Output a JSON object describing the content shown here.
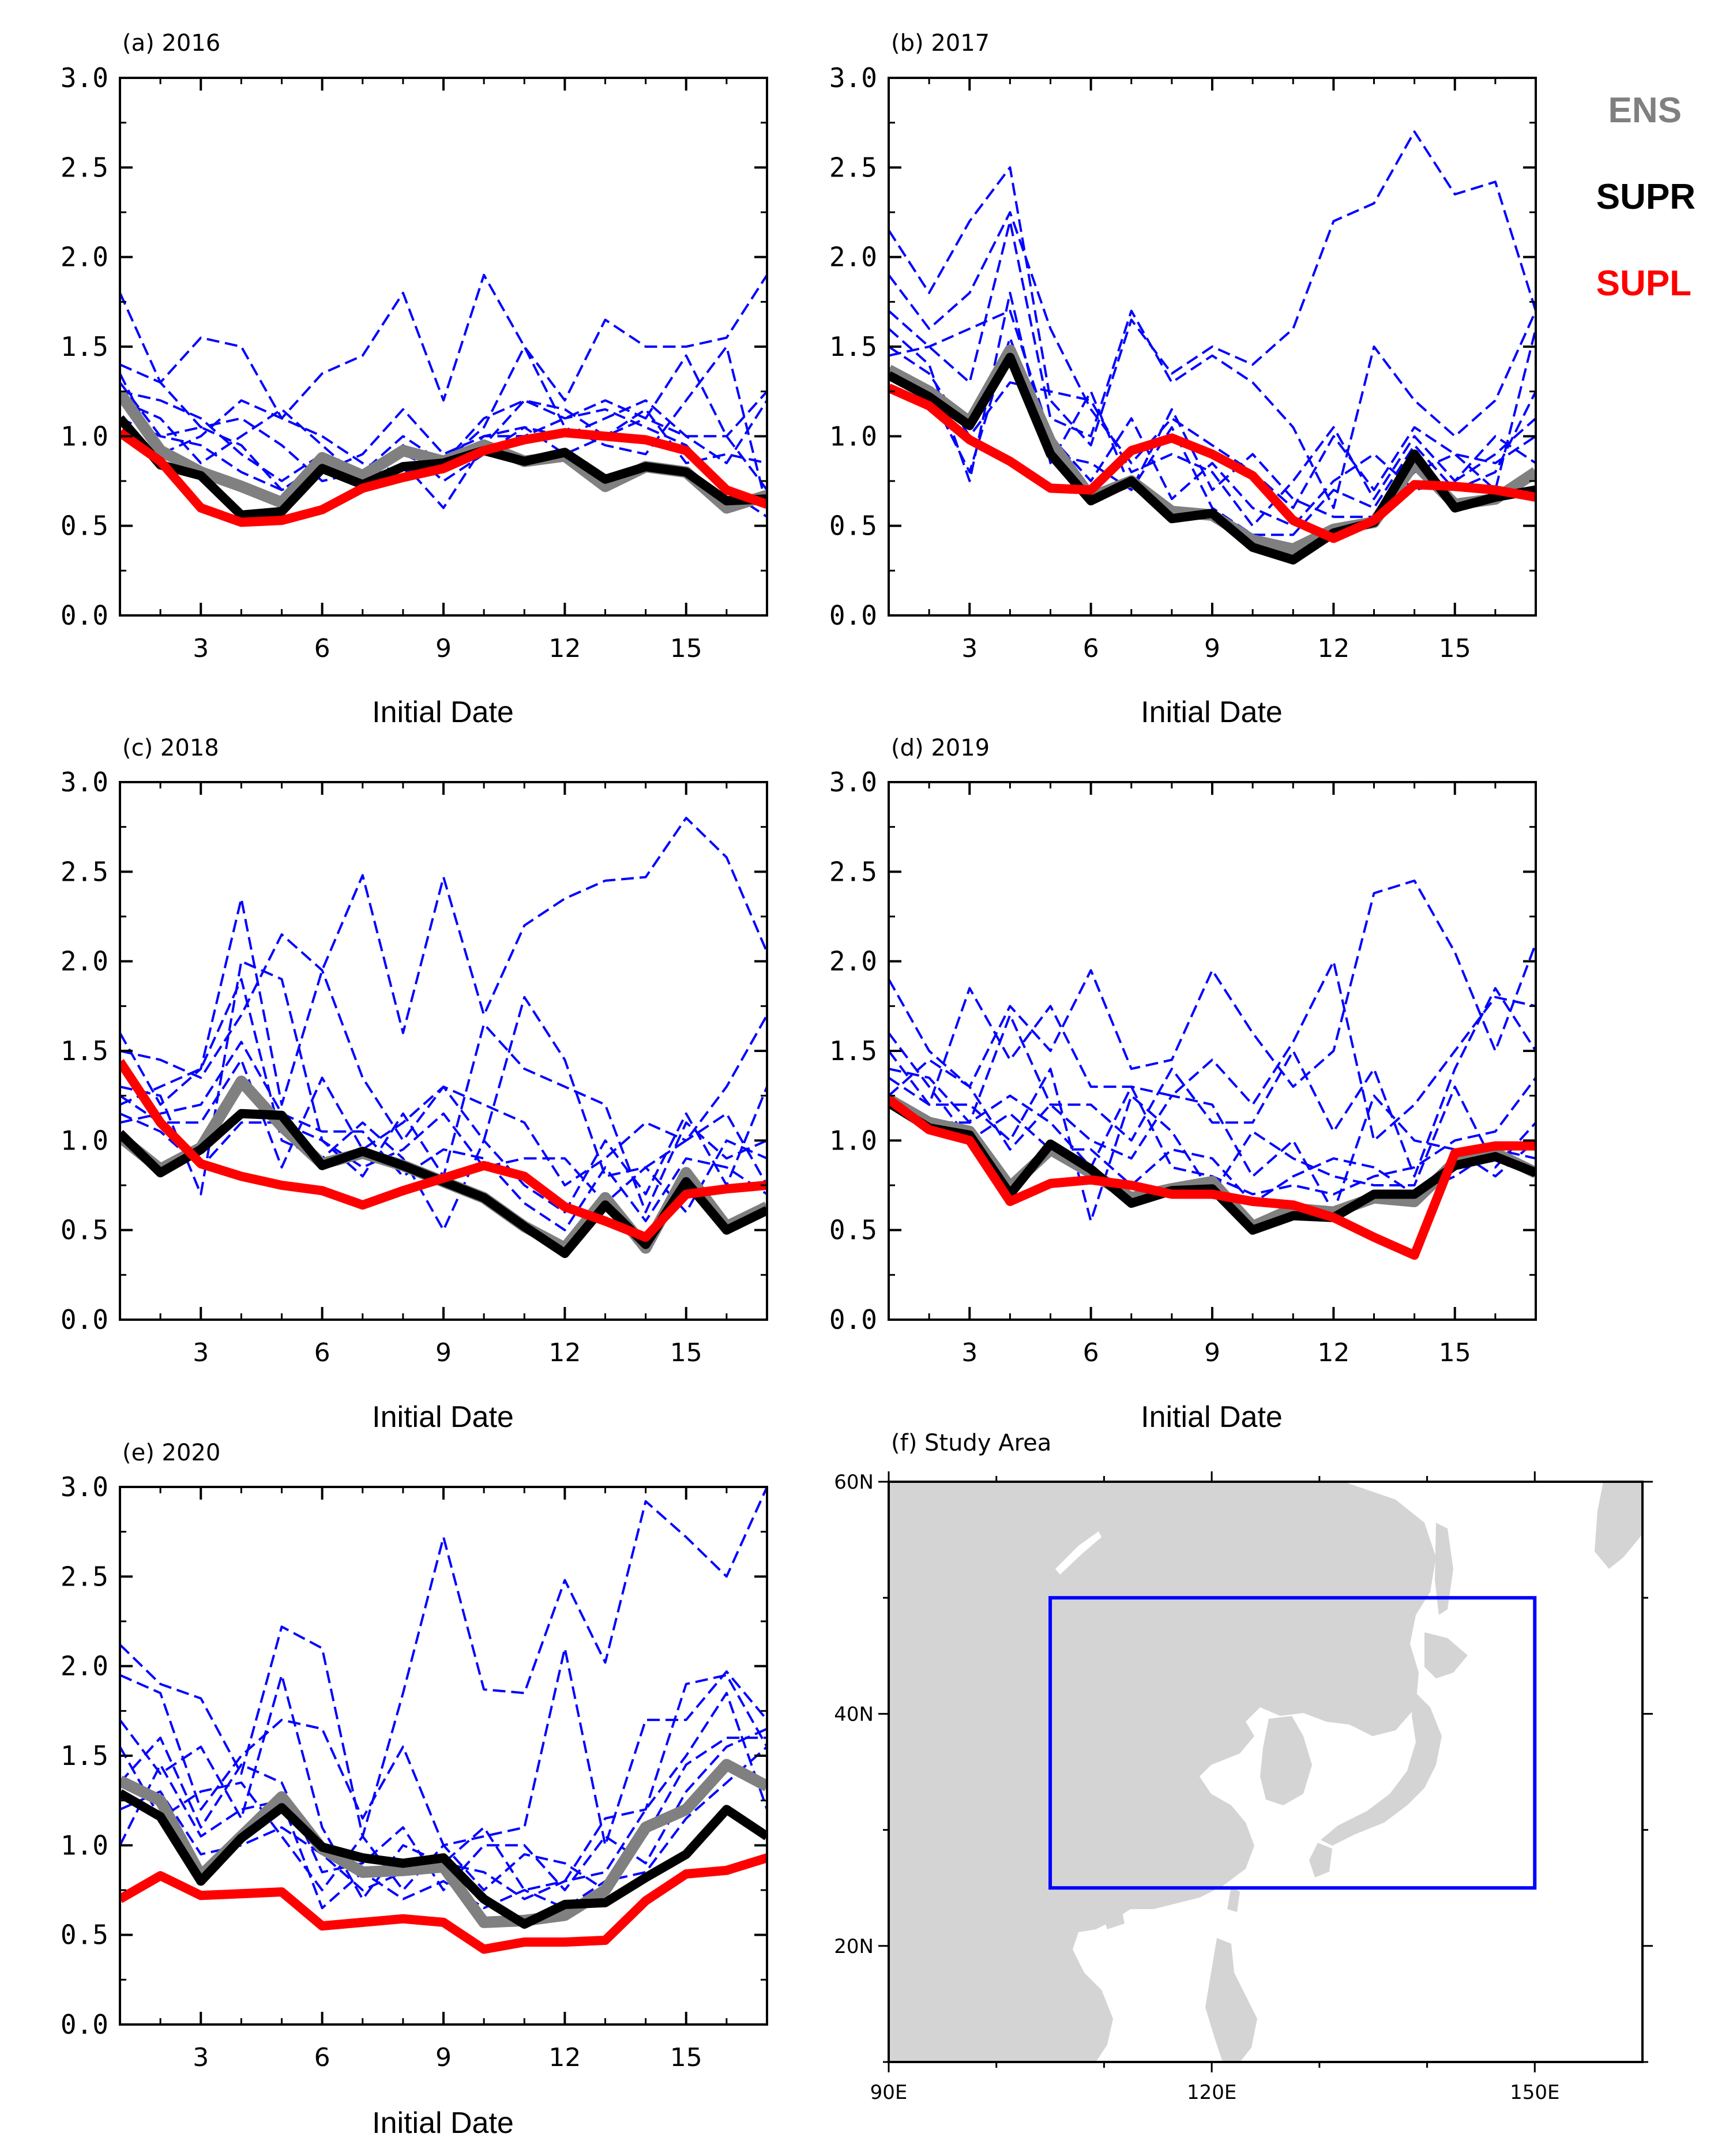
{
  "chart_data": {
    "type": "line",
    "colors": {
      "ENS": "#808080",
      "SUPR": "#000000",
      "SUPL": "#ff0000",
      "member": "#0000ff",
      "land": "#d4d4d4",
      "box": "#0000ff"
    },
    "legend": {
      "placement": "top-right",
      "entries": [
        {
          "name": "ENS",
          "color": "#808080"
        },
        {
          "name": "SUPR",
          "color": "#000000"
        },
        {
          "name": "SUPL",
          "color": "#ff0000"
        }
      ]
    },
    "xlabel": "Initial Date",
    "xticks": [
      3,
      6,
      9,
      12,
      15
    ],
    "xlim": [
      1,
      17
    ],
    "yticks": [
      "0.0",
      "0.5",
      "1.0",
      "1.5",
      "2.0",
      "2.5",
      "3.0"
    ],
    "ylim": [
      0,
      3
    ],
    "panels": [
      {
        "title": "(a) 2016",
        "series": {
          "ENS": [
            1.24,
            0.92,
            0.8,
            0.72,
            0.63,
            0.88,
            0.78,
            0.92,
            0.86,
            0.95,
            0.86,
            0.89,
            0.72,
            0.83,
            0.8,
            0.6,
            0.67
          ],
          "SUPR": [
            1.1,
            0.84,
            0.78,
            0.56,
            0.58,
            0.82,
            0.73,
            0.83,
            0.85,
            0.92,
            0.86,
            0.91,
            0.76,
            0.83,
            0.8,
            0.64,
            0.65
          ],
          "SUPL": [
            1.02,
            0.86,
            0.6,
            0.52,
            0.53,
            0.59,
            0.71,
            0.77,
            0.82,
            0.92,
            0.98,
            1.02,
            1.0,
            0.98,
            0.92,
            0.7,
            0.62
          ],
          "members": [
            [
              1.8,
              1.3,
              1.05,
              1.1,
              0.95,
              0.75,
              0.8,
              1.0,
              0.85,
              1.1,
              1.2,
              1.1,
              1.15,
              1.05,
              0.95,
              0.7,
              0.55
            ],
            [
              1.4,
              1.3,
              1.55,
              1.5,
              1.1,
              1.35,
              1.45,
              1.8,
              1.2,
              1.9,
              1.5,
              1.2,
              1.65,
              1.5,
              1.5,
              1.55,
              1.9
            ],
            [
              1.3,
              1.0,
              1.05,
              0.95,
              0.7,
              0.8,
              0.9,
              1.15,
              0.9,
              1.0,
              1.05,
              1.0,
              1.1,
              1.2,
              1.0,
              0.85,
              1.2
            ],
            [
              1.2,
              1.1,
              0.85,
              1.0,
              1.15,
              0.95,
              0.75,
              0.85,
              0.6,
              0.95,
              1.2,
              1.15,
              1.0,
              1.1,
              1.45,
              1.0,
              0.7
            ],
            [
              1.35,
              0.9,
              1.0,
              1.2,
              1.1,
              1.0,
              0.85,
              0.8,
              0.85,
              1.05,
              1.5,
              1.05,
              0.95,
              0.9,
              1.2,
              1.5,
              0.6
            ],
            [
              1.1,
              1.0,
              0.95,
              0.8,
              0.7,
              0.85,
              0.8,
              0.9,
              0.8,
              1.0,
              1.0,
              1.1,
              1.2,
              1.1,
              1.0,
              1.0,
              1.25
            ],
            [
              1.25,
              1.2,
              1.1,
              0.9,
              0.75,
              0.9,
              0.7,
              0.95,
              0.75,
              0.9,
              1.05,
              0.9,
              1.0,
              1.15,
              0.85,
              0.9,
              0.85
            ]
          ]
        }
      },
      {
        "title": "(b) 2017",
        "series": {
          "ENS": [
            1.37,
            1.25,
            1.08,
            1.48,
            0.97,
            0.66,
            0.75,
            0.58,
            0.56,
            0.42,
            0.37,
            0.48,
            0.52,
            0.85,
            0.62,
            0.65,
            0.8
          ],
          "SUPR": [
            1.34,
            1.22,
            1.06,
            1.44,
            0.9,
            0.64,
            0.75,
            0.54,
            0.57,
            0.38,
            0.31,
            0.46,
            0.52,
            0.9,
            0.6,
            0.66,
            0.7
          ],
          "SUPL": [
            1.27,
            1.17,
            0.98,
            0.86,
            0.71,
            0.7,
            0.92,
            0.99,
            0.9,
            0.78,
            0.53,
            0.43,
            0.53,
            0.73,
            0.72,
            0.7,
            0.66
          ],
          "members": [
            [
              2.15,
              1.8,
              2.2,
              2.5,
              1.2,
              0.95,
              1.65,
              1.35,
              1.5,
              1.4,
              1.6,
              2.2,
              2.3,
              2.7,
              2.35,
              2.42,
              1.7
            ],
            [
              1.9,
              1.6,
              1.8,
              2.25,
              1.6,
              1.15,
              0.85,
              1.1,
              0.95,
              0.8,
              0.6,
              1.0,
              0.7,
              1.05,
              0.9,
              0.85,
              1.0
            ],
            [
              1.7,
              1.5,
              1.3,
              2.2,
              1.1,
              1.0,
              1.7,
              1.3,
              1.45,
              1.3,
              1.05,
              0.6,
              1.5,
              1.2,
              1.0,
              1.2,
              1.7
            ],
            [
              1.6,
              1.4,
              0.75,
              1.8,
              0.85,
              1.25,
              0.7,
              1.15,
              0.7,
              0.9,
              0.65,
              0.55,
              0.55,
              0.8,
              0.9,
              0.7,
              1.6
            ],
            [
              1.5,
              1.35,
              1.0,
              1.3,
              1.25,
              1.2,
              0.8,
              0.9,
              0.8,
              0.5,
              0.75,
              1.05,
              0.65,
              1.0,
              0.75,
              1.0,
              0.85
            ],
            [
              1.45,
              1.5,
              1.6,
              1.7,
              1.0,
              0.75,
              1.1,
              0.65,
              0.85,
              0.6,
              0.5,
              0.75,
              0.9,
              0.7,
              0.75,
              0.9,
              1.1
            ],
            [
              1.35,
              1.25,
              0.8,
              1.55,
              0.9,
              0.85,
              0.7,
              1.05,
              0.6,
              0.45,
              0.45,
              0.7,
              0.6,
              0.95,
              0.7,
              0.8,
              1.25
            ]
          ]
        }
      },
      {
        "title": "(c) 2018",
        "series": {
          "ENS": [
            1.02,
            0.84,
            0.96,
            1.33,
            1.08,
            0.87,
            0.93,
            0.86,
            0.77,
            0.68,
            0.52,
            0.4,
            0.68,
            0.4,
            0.82,
            0.52,
            0.63
          ],
          "SUPR": [
            1.04,
            0.82,
            0.95,
            1.15,
            1.14,
            0.86,
            0.94,
            0.86,
            0.77,
            0.68,
            0.52,
            0.37,
            0.64,
            0.42,
            0.77,
            0.5,
            0.61
          ],
          "SUPL": [
            1.44,
            1.1,
            0.87,
            0.8,
            0.75,
            0.72,
            0.64,
            0.72,
            0.79,
            0.86,
            0.8,
            0.63,
            0.55,
            0.46,
            0.7,
            0.73,
            0.75
          ],
          "members": [
            [
              1.6,
              1.2,
              1.4,
              2.35,
              1.2,
              1.95,
              2.48,
              1.6,
              2.47,
              1.7,
              2.2,
              2.35,
              2.45,
              2.47,
              2.8,
              2.58,
              2.05
            ],
            [
              1.5,
              1.45,
              1.35,
              1.7,
              2.15,
              1.95,
              1.35,
              1.0,
              1.3,
              1.0,
              1.8,
              1.45,
              0.8,
              0.85,
              1.0,
              1.3,
              1.7
            ],
            [
              1.3,
              1.25,
              0.7,
              2.0,
              1.9,
              1.0,
              0.8,
              1.15,
              0.8,
              1.65,
              1.4,
              1.3,
              1.2,
              0.6,
              1.1,
              0.9,
              1.0
            ],
            [
              1.25,
              1.1,
              1.1,
              1.45,
              0.85,
              1.35,
              0.95,
              1.1,
              1.3,
              1.2,
              1.1,
              0.75,
              0.9,
              1.1,
              1.0,
              1.15,
              0.75
            ],
            [
              1.2,
              1.3,
              1.4,
              1.9,
              1.0,
              0.9,
              1.1,
              0.9,
              0.5,
              1.0,
              0.75,
              0.6,
              1.0,
              0.7,
              1.15,
              0.75,
              1.3
            ],
            [
              1.15,
              1.05,
              0.85,
              1.1,
              1.1,
              1.0,
              0.85,
              0.95,
              1.15,
              0.85,
              0.9,
              0.9,
              0.65,
              0.85,
              0.6,
              1.0,
              0.9
            ],
            [
              1.1,
              1.15,
              1.2,
              1.55,
              1.15,
              1.05,
              1.05,
              0.8,
              0.95,
              0.9,
              0.65,
              0.5,
              0.85,
              0.55,
              0.9,
              0.85,
              0.7
            ]
          ]
        }
      },
      {
        "title": "(d) 2019",
        "series": {
          "ENS": [
            1.23,
            1.1,
            1.05,
            0.74,
            0.95,
            0.82,
            0.68,
            0.73,
            0.77,
            0.52,
            0.62,
            0.6,
            0.68,
            0.66,
            0.88,
            0.93,
            0.82
          ],
          "SUPR": [
            1.21,
            1.07,
            1.03,
            0.7,
            0.98,
            0.84,
            0.65,
            0.72,
            0.73,
            0.5,
            0.58,
            0.57,
            0.7,
            0.7,
            0.86,
            0.91,
            0.82
          ],
          "SUPL": [
            1.23,
            1.06,
            1.0,
            0.66,
            0.76,
            0.78,
            0.75,
            0.7,
            0.7,
            0.66,
            0.64,
            0.57,
            0.46,
            0.36,
            0.93,
            0.97,
            0.97
          ],
          "members": [
            [
              1.9,
              1.5,
              1.3,
              1.75,
              1.5,
              1.95,
              1.4,
              1.45,
              1.95,
              1.6,
              1.3,
              1.5,
              2.38,
              2.45,
              2.05,
              1.5,
              2.1
            ],
            [
              1.5,
              1.2,
              1.85,
              1.45,
              1.75,
              1.3,
              1.3,
              1.25,
              1.45,
              1.2,
              1.55,
              2.0,
              1.0,
              1.2,
              1.5,
              1.8,
              1.75
            ],
            [
              1.4,
              1.35,
              1.1,
              1.7,
              1.2,
              1.2,
              1.0,
              1.4,
              1.1,
              1.1,
              1.5,
              1.05,
              1.4,
              0.8,
              1.4,
              1.85,
              1.5
            ],
            [
              1.35,
              1.2,
              1.2,
              1.0,
              1.4,
              0.55,
              1.25,
              1.05,
              0.7,
              1.05,
              0.9,
              0.8,
              0.75,
              0.75,
              1.3,
              0.85,
              1.1
            ],
            [
              1.25,
              1.45,
              1.3,
              0.95,
              1.2,
              1.0,
              0.9,
              1.25,
              1.2,
              0.8,
              1.0,
              0.6,
              1.25,
              1.0,
              0.95,
              0.8,
              1.0
            ],
            [
              1.2,
              1.1,
              1.1,
              1.25,
              1.1,
              0.85,
              1.3,
              0.85,
              0.8,
              0.7,
              0.75,
              0.7,
              0.8,
              0.85,
              1.0,
              1.05,
              1.35
            ],
            [
              1.6,
              1.3,
              1.0,
              1.15,
              0.95,
              0.95,
              0.75,
              0.95,
              0.9,
              0.65,
              0.8,
              0.9,
              0.85,
              0.7,
              0.8,
              0.95,
              0.9
            ]
          ]
        }
      },
      {
        "title": "(e) 2020",
        "series": {
          "ENS": [
            1.36,
            1.25,
            0.83,
            1.05,
            1.27,
            0.98,
            0.85,
            0.86,
            0.88,
            0.57,
            0.58,
            0.61,
            0.75,
            1.1,
            1.2,
            1.45,
            1.33
          ],
          "SUPR": [
            1.29,
            1.16,
            0.8,
            1.04,
            1.21,
            0.99,
            0.93,
            0.9,
            0.93,
            0.7,
            0.56,
            0.67,
            0.68,
            0.82,
            0.95,
            1.2,
            1.05
          ],
          "SUPL": [
            0.7,
            0.83,
            0.72,
            0.73,
            0.74,
            0.55,
            0.57,
            0.59,
            0.57,
            0.42,
            0.46,
            0.46,
            0.47,
            0.69,
            0.84,
            0.86,
            0.93
          ],
          "members": [
            [
              2.12,
              1.9,
              1.82,
              1.4,
              2.22,
              2.1,
              1.05,
              1.85,
              2.72,
              1.87,
              1.85,
              2.48,
              2.02,
              2.92,
              2.72,
              2.5,
              3.0
            ],
            [
              1.95,
              1.85,
              1.2,
              1.5,
              1.7,
              1.65,
              1.15,
              1.55,
              1.0,
              1.05,
              1.1,
              2.1,
              1.0,
              1.7,
              1.7,
              1.97,
              1.7
            ],
            [
              1.7,
              1.4,
              1.55,
              1.15,
              1.95,
              1.1,
              0.7,
              1.0,
              0.9,
              1.1,
              0.75,
              0.8,
              1.15,
              1.2,
              1.9,
              1.95,
              1.55
            ],
            [
              1.55,
              1.15,
              1.3,
              1.35,
              1.05,
              0.75,
              1.05,
              0.75,
              1.0,
              0.75,
              0.95,
              0.9,
              0.75,
              1.05,
              1.45,
              1.6,
              1.6
            ],
            [
              1.35,
              1.6,
              1.1,
              1.45,
              1.35,
              0.85,
              0.9,
              1.1,
              0.75,
              1.0,
              1.0,
              0.75,
              1.05,
              0.9,
              1.3,
              1.55,
              1.65
            ],
            [
              1.2,
              1.3,
              0.95,
              1.0,
              1.1,
              0.95,
              0.75,
              0.85,
              0.9,
              0.85,
              0.7,
              0.8,
              0.85,
              1.2,
              1.5,
              1.85,
              1.2
            ],
            [
              1.0,
              1.45,
              1.05,
              1.2,
              1.25,
              0.65,
              0.85,
              0.7,
              0.8,
              0.65,
              0.75,
              0.65,
              0.8,
              0.85,
              1.15,
              1.35,
              1.55
            ]
          ]
        }
      }
    ],
    "map": {
      "title": "(f) Study Area",
      "xticks": [
        {
          "label": "90E",
          "value": 90
        },
        {
          "label": "120E",
          "value": 120
        },
        {
          "label": "150E",
          "value": 150
        }
      ],
      "yticks": [
        {
          "label": "20N",
          "value": 20
        },
        {
          "label": "40N",
          "value": 40
        },
        {
          "label": "60N",
          "value": 60
        }
      ],
      "lon_range": [
        90,
        160
      ],
      "lat_range": [
        10,
        60
      ],
      "box": {
        "lon_min": 105,
        "lon_max": 150,
        "lat_min": 25,
        "lat_max": 50
      }
    }
  }
}
